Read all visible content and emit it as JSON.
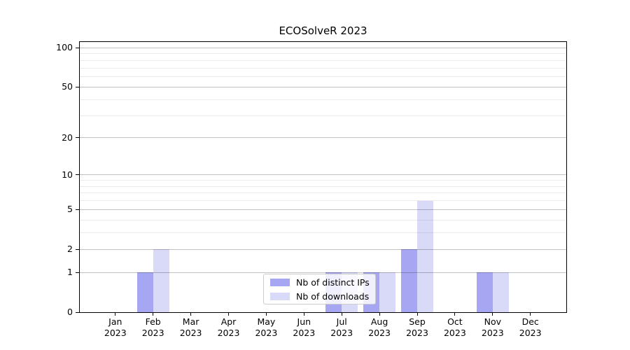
{
  "title": "ECOSolveR 2023",
  "chart_data": {
    "type": "bar",
    "title": "ECOSolveR 2023",
    "categories": [
      "Jan 2023",
      "Feb 2023",
      "Mar 2023",
      "Apr 2023",
      "May 2023",
      "Jun 2023",
      "Jul 2023",
      "Aug 2023",
      "Sep 2023",
      "Oct 2023",
      "Nov 2023",
      "Dec 2023"
    ],
    "months": [
      "Jan",
      "Feb",
      "Mar",
      "Apr",
      "May",
      "Jun",
      "Jul",
      "Aug",
      "Sep",
      "Oct",
      "Nov",
      "Dec"
    ],
    "year_label": "2023",
    "series": [
      {
        "name": "Nb of distinct IPs",
        "color": "#a6a6f2",
        "values": [
          0,
          1,
          0,
          0,
          0,
          0,
          1,
          1,
          2,
          0,
          1,
          0
        ]
      },
      {
        "name": "Nb of downloads",
        "color": "#d9d9f8",
        "values": [
          0,
          2,
          0,
          0,
          0,
          0,
          1,
          1,
          6,
          0,
          1,
          0
        ]
      }
    ],
    "xlabel": "",
    "ylabel": "",
    "y_scale": "log1p",
    "y_ticks": [
      0,
      1,
      2,
      5,
      10,
      20,
      50,
      100
    ],
    "y_minor_gridlines": [
      3,
      4,
      6,
      7,
      8,
      9,
      30,
      40,
      60,
      70,
      80,
      90
    ],
    "y_max": 111,
    "grid": true,
    "legend_position": "lower center"
  }
}
